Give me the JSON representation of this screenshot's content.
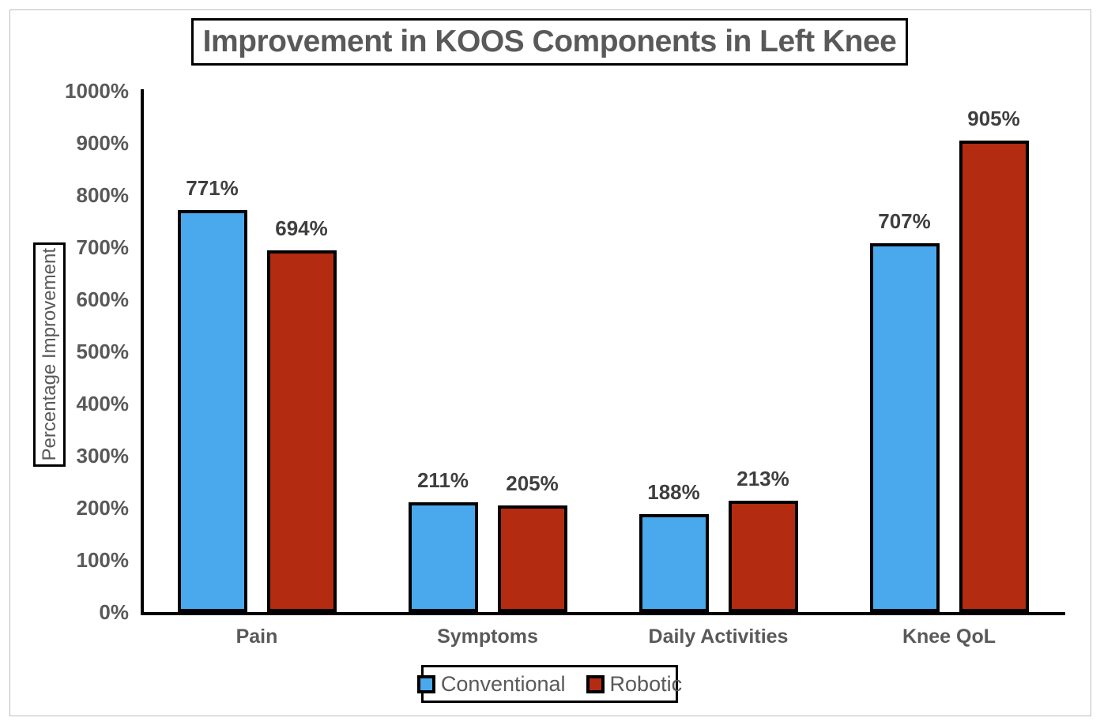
{
  "chart": {
    "title": "Improvement in KOOS Components in Left Knee",
    "y_axis_label": "Percentage Improvement"
  },
  "legend": {
    "items": [
      {
        "label": "Conventional",
        "color": "#4aa9ec"
      },
      {
        "label": "Robotic",
        "color": "#b32b10"
      }
    ]
  },
  "chart_data": {
    "type": "bar",
    "title": "Improvement in KOOS Components in Left Knee",
    "xlabel": "",
    "ylabel": "Percentage Improvement",
    "categories": [
      "Pain",
      "Symptoms",
      "Daily Activities",
      "Knee QoL"
    ],
    "series": [
      {
        "name": "Conventional",
        "color": "#4aa9ec",
        "values": [
          771,
          211,
          188,
          707
        ],
        "labels": [
          "771%",
          "211%",
          "188%",
          "707%"
        ]
      },
      {
        "name": "Robotic",
        "color": "#b32b10",
        "values": [
          694,
          205,
          213,
          905
        ],
        "labels": [
          "694%",
          "205%",
          "213%",
          "905%"
        ]
      }
    ],
    "ylim": [
      0,
      1000
    ],
    "ytick_labels": [
      "0%",
      "100%",
      "200%",
      "300%",
      "400%",
      "500%",
      "600%",
      "700%",
      "800%",
      "900%",
      "1000%"
    ],
    "grid": false,
    "legend_position": "bottom",
    "unit": "%"
  }
}
